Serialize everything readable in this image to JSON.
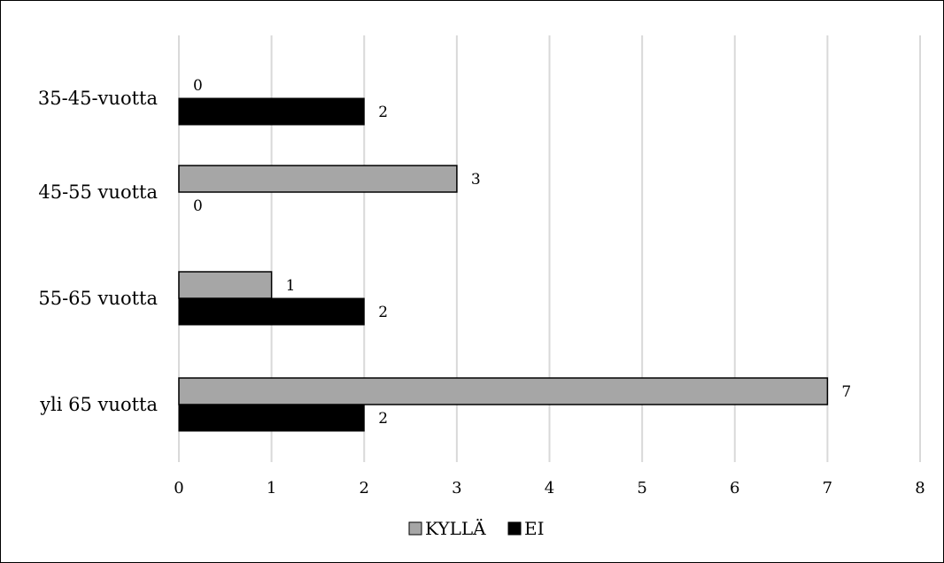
{
  "chart_data": {
    "type": "bar",
    "orientation": "horizontal",
    "categories": [
      "35-45-vuotta",
      "45-55 vuotta",
      "55-65 vuotta",
      "yli 65 vuotta"
    ],
    "series": [
      {
        "name": "KYLLÄ",
        "values": [
          0,
          3,
          1,
          7
        ],
        "color": "#a6a6a6"
      },
      {
        "name": "EI",
        "values": [
          2,
          0,
          2,
          2
        ],
        "color": "#000000"
      }
    ],
    "xlim": [
      0,
      8
    ],
    "xticks": [
      0,
      1,
      2,
      3,
      4,
      5,
      6,
      7,
      8
    ],
    "title": "",
    "xlabel": "",
    "ylabel": "",
    "grid": "vertical",
    "legend": "bottom",
    "data_labels": true
  }
}
